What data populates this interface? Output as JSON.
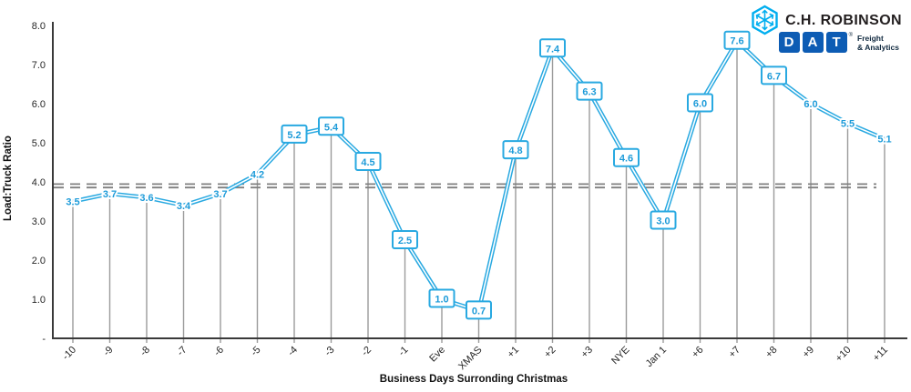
{
  "header": {
    "chr_logo_text": "C.H. ROBINSON",
    "dat_letters": [
      "D",
      "A",
      "T"
    ],
    "dat_registered": "®",
    "dat_tagline_line1": "Freight",
    "dat_tagline_line2": "& Analytics"
  },
  "chart_data": {
    "type": "line",
    "title": "",
    "xlabel": "Business Days Surronding Christmas",
    "ylabel": "Load:Truck Ratio",
    "categories": [
      "-10",
      "-9",
      "-8",
      "-7",
      "-6",
      "-5",
      "-4",
      "-3",
      "-2",
      "-1",
      "Eve",
      "XMAS",
      "+1",
      "+2",
      "+3",
      "NYE",
      "Jan 1",
      "+6",
      "+7",
      "+8",
      "+9",
      "+10",
      "+11"
    ],
    "values": [
      3.5,
      3.7,
      3.6,
      3.4,
      3.7,
      4.2,
      5.2,
      5.4,
      4.5,
      2.5,
      1.0,
      0.7,
      4.8,
      7.4,
      6.3,
      4.6,
      3.0,
      6.0,
      7.6,
      6.7,
      6.0,
      5.5,
      5.1
    ],
    "label_boxed": [
      false,
      false,
      false,
      false,
      false,
      false,
      true,
      true,
      true,
      true,
      true,
      true,
      true,
      true,
      true,
      true,
      true,
      true,
      true,
      true,
      false,
      false,
      false
    ],
    "average_line_value": 3.9,
    "ylim": [
      0,
      8
    ],
    "ytick_labels": [
      "-",
      "1.0",
      "2.0",
      "3.0",
      "4.0",
      "5.0",
      "6.0",
      "7.0",
      "8.0"
    ],
    "grid": "off",
    "legend": "none",
    "colors": {
      "series": "#29a9e1",
      "label": "#1d9bd9",
      "dropline": "#9b9b9b",
      "average": "#7f7f7f",
      "axis": "#3a3a3a"
    }
  }
}
